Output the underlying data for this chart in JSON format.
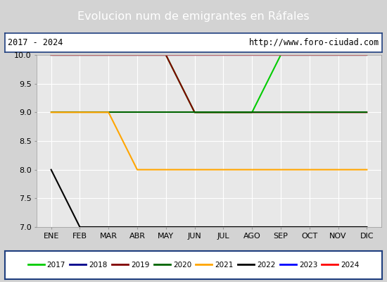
{
  "title": "Evolucion num de emigrantes en Ráfales",
  "subtitle_left": "2017 - 2024",
  "subtitle_right": "http://www.foro-ciudad.com",
  "months": [
    "ENE",
    "FEB",
    "MAR",
    "ABR",
    "MAY",
    "JUN",
    "JUL",
    "AGO",
    "SEP",
    "OCT",
    "NOV",
    "DIC"
  ],
  "ylim": [
    7.0,
    10.0
  ],
  "yticks": [
    7.0,
    7.5,
    8.0,
    8.5,
    9.0,
    9.5,
    10.0
  ],
  "series": [
    {
      "label": "2017",
      "color": "#00cc00",
      "data": [
        10,
        10,
        10,
        10,
        10,
        9,
        9,
        9,
        10,
        10,
        10,
        10
      ]
    },
    {
      "label": "2018",
      "color": "#00008b",
      "data": [
        10,
        10,
        10,
        10,
        10,
        10,
        10,
        10,
        10,
        10,
        10,
        10
      ]
    },
    {
      "label": "2019",
      "color": "#800000",
      "data": [
        10,
        10,
        10,
        10,
        10,
        9,
        9,
        9,
        9,
        9,
        9,
        9
      ]
    },
    {
      "label": "2020",
      "color": "#006400",
      "data": [
        9,
        9,
        9,
        9,
        9,
        9,
        9,
        9,
        9,
        9,
        9,
        9
      ]
    },
    {
      "label": "2021",
      "color": "#ffa500",
      "data": [
        9,
        9,
        9,
        8,
        8,
        8,
        8,
        8,
        8,
        8,
        8,
        8
      ]
    },
    {
      "label": "2022",
      "color": "#000000",
      "data": [
        8,
        7,
        7,
        7,
        7,
        7,
        7,
        7,
        7,
        7,
        7,
        7
      ]
    },
    {
      "label": "2023",
      "color": "#0000ff",
      "data": [
        10,
        10,
        10,
        10,
        10,
        10,
        10,
        10,
        10,
        10,
        10,
        10
      ]
    },
    {
      "label": "2024",
      "color": "#ff0000",
      "data": [
        10,
        10,
        10,
        10,
        10,
        10,
        10,
        10,
        10,
        10,
        10,
        10
      ]
    }
  ],
  "title_bg_color": "#4472c4",
  "title_text_color": "#ffffff",
  "subtitle_bg_color": "#ffffff",
  "plot_bg_color": "#e8e8e8",
  "grid_color": "#ffffff",
  "fig_bg_color": "#d3d3d3",
  "legend_bg_color": "#ffffff",
  "legend_border_color": "#1f3f7f"
}
